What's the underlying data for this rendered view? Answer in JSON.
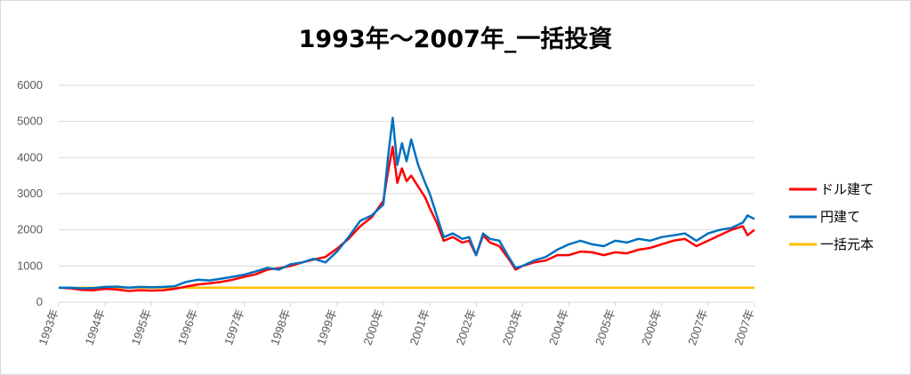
{
  "chart_data": {
    "type": "line",
    "title": "1993年～2007年_一括投資",
    "xlabel": "",
    "ylabel": "",
    "ylim": [
      0,
      6000
    ],
    "yticks": [
      0,
      1000,
      2000,
      3000,
      4000,
      5000,
      6000
    ],
    "xlim": [
      1993.0,
      2008.0
    ],
    "xticks": [
      "1993年",
      "1994年",
      "1995年",
      "1996年",
      "1997年",
      "1998年",
      "1999年",
      "2000年",
      "2001年",
      "2002年",
      "2003年",
      "2004年",
      "2005年",
      "2006年",
      "2007年",
      "2007年"
    ],
    "grid": "horizontal",
    "legend_position": "right",
    "series": [
      {
        "name": "ドル建て",
        "color": "#ff0000",
        "x": [
          1993.0,
          1993.25,
          1993.5,
          1993.75,
          1994.0,
          1994.25,
          1994.5,
          1994.75,
          1995.0,
          1995.25,
          1995.5,
          1995.75,
          1996.0,
          1996.25,
          1996.5,
          1996.75,
          1997.0,
          1997.25,
          1997.5,
          1997.75,
          1998.0,
          1998.25,
          1998.5,
          1998.75,
          1999.0,
          1999.25,
          1999.5,
          1999.75,
          2000.0,
          2000.1,
          2000.2,
          2000.3,
          2000.4,
          2000.5,
          2000.6,
          2000.75,
          2000.9,
          2001.0,
          2001.15,
          2001.3,
          2001.5,
          2001.7,
          2001.85,
          2002.0,
          2002.15,
          2002.3,
          2002.5,
          2002.7,
          2002.85,
          2003.0,
          2003.25,
          2003.5,
          2003.75,
          2004.0,
          2004.25,
          2004.5,
          2004.75,
          2005.0,
          2005.25,
          2005.5,
          2005.75,
          2006.0,
          2006.25,
          2006.5,
          2006.75,
          2007.0,
          2007.25,
          2007.5,
          2007.75,
          2007.85,
          2008.0
        ],
        "values": [
          400,
          380,
          340,
          330,
          370,
          350,
          310,
          330,
          320,
          330,
          370,
          430,
          490,
          520,
          560,
          620,
          700,
          770,
          900,
          940,
          1000,
          1100,
          1180,
          1250,
          1480,
          1750,
          2100,
          2350,
          2800,
          3600,
          4300,
          3300,
          3700,
          3350,
          3500,
          3200,
          2900,
          2600,
          2200,
          1700,
          1800,
          1650,
          1700,
          1300,
          1850,
          1650,
          1550,
          1200,
          900,
          1000,
          1100,
          1150,
          1300,
          1300,
          1400,
          1380,
          1300,
          1380,
          1350,
          1450,
          1500,
          1600,
          1700,
          1750,
          1550,
          1700,
          1850,
          2000,
          2100,
          1850,
          2000
        ]
      },
      {
        "name": "円建て",
        "color": "#0070c0",
        "x": [
          1993.0,
          1993.25,
          1993.5,
          1993.75,
          1994.0,
          1994.25,
          1994.5,
          1994.75,
          1995.0,
          1995.25,
          1995.5,
          1995.75,
          1996.0,
          1996.25,
          1996.5,
          1996.75,
          1997.0,
          1997.25,
          1997.5,
          1997.75,
          1998.0,
          1998.25,
          1998.5,
          1998.75,
          1999.0,
          1999.25,
          1999.5,
          1999.75,
          2000.0,
          2000.1,
          2000.2,
          2000.3,
          2000.4,
          2000.5,
          2000.6,
          2000.75,
          2000.9,
          2001.0,
          2001.15,
          2001.3,
          2001.5,
          2001.7,
          2001.85,
          2002.0,
          2002.15,
          2002.3,
          2002.5,
          2002.7,
          2002.85,
          2003.0,
          2003.25,
          2003.5,
          2003.75,
          2004.0,
          2004.25,
          2004.5,
          2004.75,
          2005.0,
          2005.25,
          2005.5,
          2005.75,
          2006.0,
          2006.25,
          2006.5,
          2006.75,
          2007.0,
          2007.25,
          2007.5,
          2007.75,
          2007.85,
          2008.0
        ],
        "values": [
          400,
          400,
          380,
          390,
          420,
          430,
          400,
          420,
          410,
          420,
          440,
          560,
          620,
          600,
          650,
          700,
          760,
          850,
          950,
          900,
          1050,
          1100,
          1200,
          1100,
          1400,
          1800,
          2250,
          2400,
          2700,
          4000,
          5100,
          3800,
          4400,
          3900,
          4500,
          3800,
          3300,
          3000,
          2400,
          1800,
          1900,
          1750,
          1800,
          1300,
          1900,
          1750,
          1700,
          1250,
          950,
          1000,
          1150,
          1250,
          1450,
          1600,
          1700,
          1600,
          1550,
          1700,
          1650,
          1750,
          1700,
          1800,
          1850,
          1900,
          1700,
          1900,
          2000,
          2050,
          2200,
          2400,
          2300
        ]
      },
      {
        "name": "一括元本",
        "color": "#ffc000",
        "x": [
          1993.0,
          2008.0
        ],
        "values": [
          400,
          400
        ]
      }
    ]
  }
}
